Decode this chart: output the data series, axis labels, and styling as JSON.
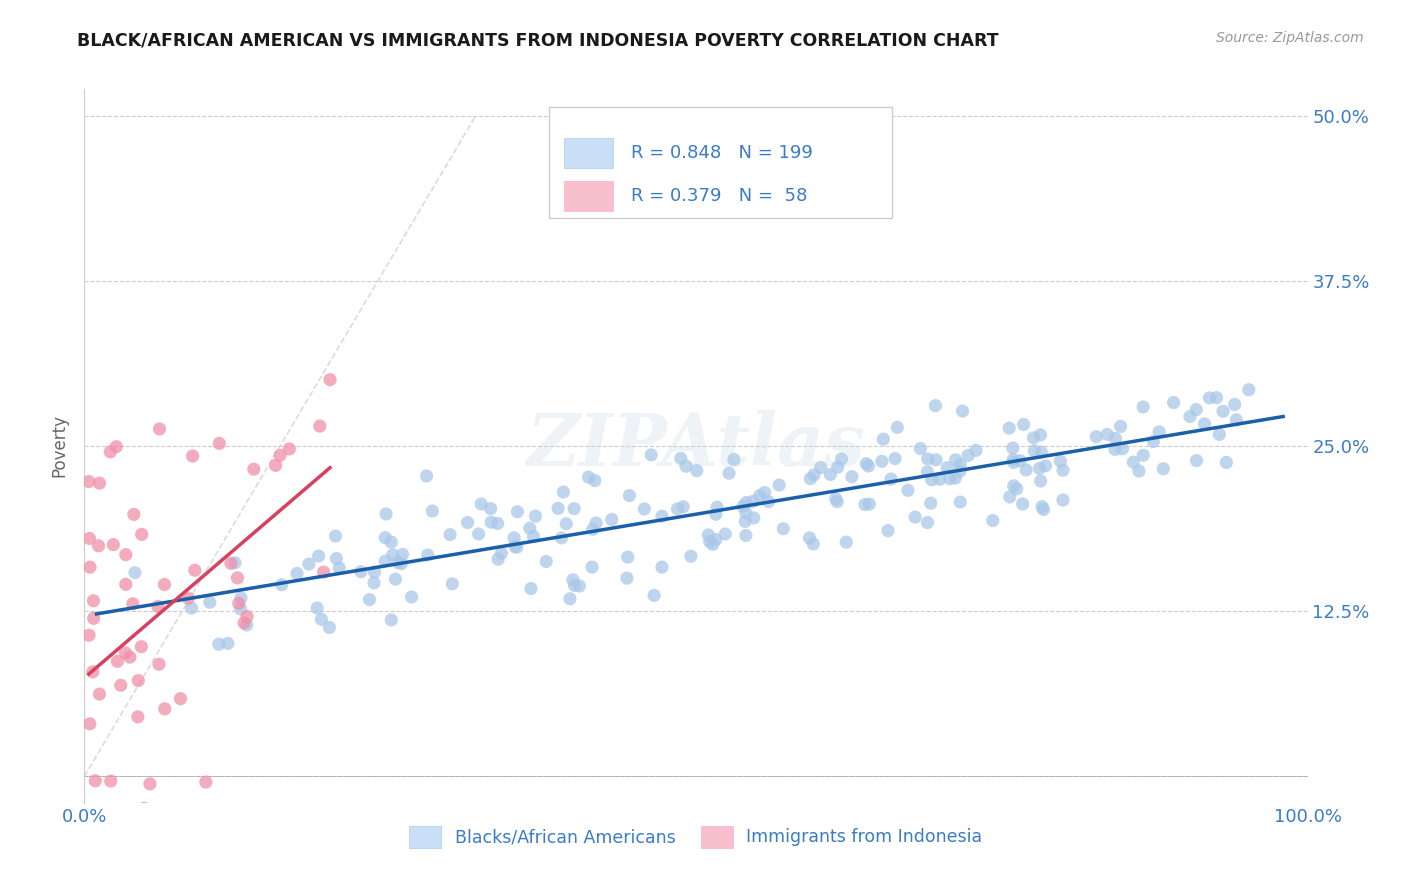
{
  "title": "BLACK/AFRICAN AMERICAN VS IMMIGRANTS FROM INDONESIA POVERTY CORRELATION CHART",
  "source": "Source: ZipAtlas.com",
  "ylabel": "Poverty",
  "xlim": [
    0,
    1.0
  ],
  "ylim": [
    -0.02,
    0.52
  ],
  "x_ticks": [
    0.0,
    0.25,
    0.5,
    0.75,
    1.0
  ],
  "x_tick_labels": [
    "0.0%",
    "",
    "",
    "",
    "100.0%"
  ],
  "y_ticks": [
    0.0,
    0.125,
    0.25,
    0.375,
    0.5
  ],
  "y_tick_labels": [
    "",
    "12.5%",
    "25.0%",
    "37.5%",
    "50.0%"
  ],
  "blue_R": 0.848,
  "blue_N": 199,
  "pink_R": 0.379,
  "pink_N": 58,
  "blue_color": "#a8c8e8",
  "pink_color": "#f090a8",
  "blue_line_color": "#1a5fa8",
  "pink_line_color": "#d84060",
  "blue_legend_color": "#c8dff5",
  "pink_legend_color": "#f8c0cc",
  "watermark": "ZIPAtlas",
  "background_color": "#ffffff",
  "grid_color": "#cccccc",
  "title_color": "#1a1a1a",
  "label_color": "#3a7cc8",
  "ref_line_color": "#d0c8d8"
}
